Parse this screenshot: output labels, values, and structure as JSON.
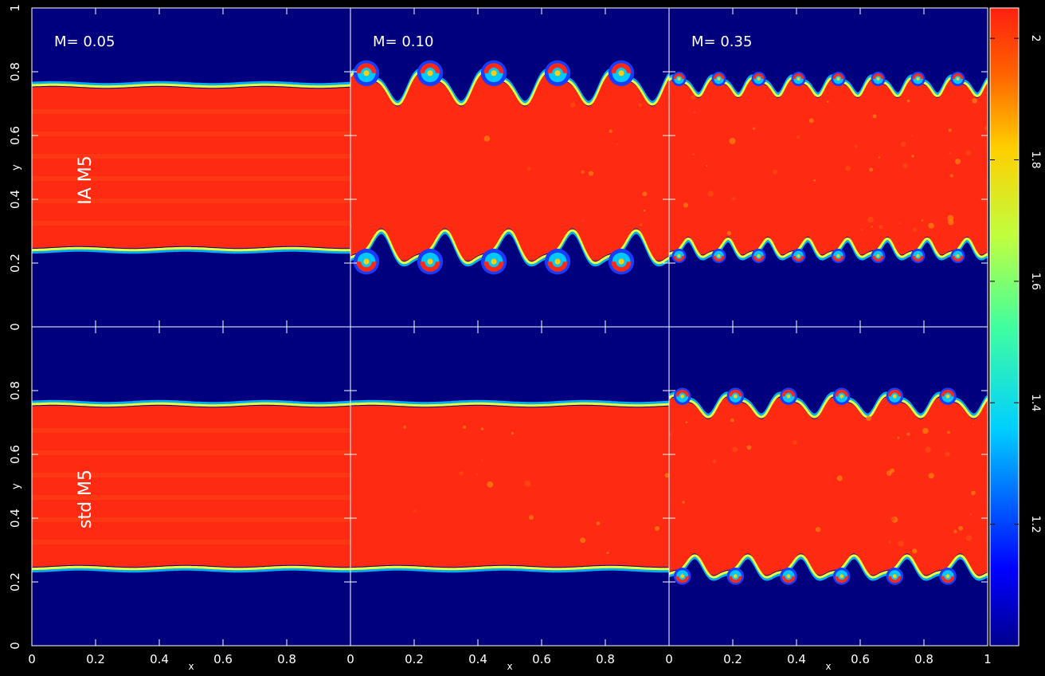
{
  "chart_data": {
    "type": "heatmap",
    "description_fields": {
      "field": "density",
      "colormap": "jet"
    },
    "title": "",
    "colorbar": {
      "range": [
        1.0,
        2.05
      ],
      "ticks": [
        "1.2",
        "1.4",
        "1.6",
        "1.8",
        "2"
      ],
      "tick_values": [
        1.2,
        1.4,
        1.6,
        1.8,
        2.0
      ],
      "colors": {
        "low": "#00007f",
        "high": "#ff2a12"
      }
    },
    "x_axis": {
      "label": "x",
      "range": [
        0,
        1
      ],
      "ticks": [
        "0",
        "0.2",
        "0.4",
        "0.6",
        "0.8",
        "1"
      ]
    },
    "y_axis": {
      "label": "y",
      "range": [
        0,
        1
      ],
      "ticks": [
        "0",
        "0.2",
        "0.4",
        "0.6",
        "0.8",
        "1"
      ]
    },
    "columns": [
      {
        "label": "M= 0.05",
        "mach": 0.05
      },
      {
        "label": "M= 0.10",
        "mach": 0.1
      },
      {
        "label": "M= 0.35",
        "mach": 0.35
      }
    ],
    "rows": [
      {
        "label": "IA M5",
        "method": "IA"
      },
      {
        "label": "std M5",
        "method": "std"
      }
    ],
    "panels": [
      {
        "row": 0,
        "col": 0,
        "band_lower_y": 0.25,
        "band_upper_y": 0.75,
        "vortex_count": 0,
        "vortex_amplitude": 0.0,
        "noise": 0.0
      },
      {
        "row": 0,
        "col": 1,
        "band_lower_y": 0.25,
        "band_upper_y": 0.75,
        "vortex_count": 5,
        "vortex_amplitude": 0.045,
        "noise": 0.05
      },
      {
        "row": 0,
        "col": 2,
        "band_lower_y": 0.25,
        "band_upper_y": 0.75,
        "vortex_count": 8,
        "vortex_amplitude": 0.025,
        "noise": 0.16
      },
      {
        "row": 1,
        "col": 0,
        "band_lower_y": 0.25,
        "band_upper_y": 0.75,
        "vortex_count": 0,
        "vortex_amplitude": 0.0,
        "noise": 0.0
      },
      {
        "row": 1,
        "col": 1,
        "band_lower_y": 0.25,
        "band_upper_y": 0.75,
        "vortex_count": 0,
        "vortex_amplitude": 0.0,
        "noise": 0.06
      },
      {
        "row": 1,
        "col": 2,
        "band_lower_y": 0.25,
        "band_upper_y": 0.75,
        "vortex_count": 6,
        "vortex_amplitude": 0.03,
        "noise": 0.12
      }
    ],
    "grid": false,
    "colors": {
      "background": "#000000",
      "low_field": "#00007f",
      "high_field": "#ff2a12",
      "axis": "#ffffff"
    }
  }
}
